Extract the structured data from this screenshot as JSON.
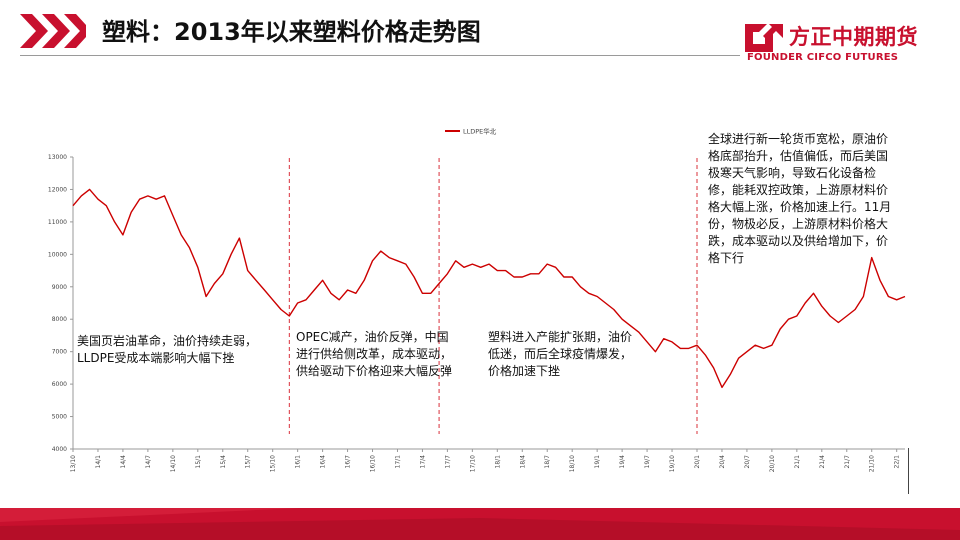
{
  "header": {
    "title": "塑料：2013年以来塑料价格走势图"
  },
  "logo": {
    "name_cn": "方正中期期货",
    "name_en": "FOUNDER CIFCO FUTURES",
    "brand_color": "#c8102e"
  },
  "annotations": [
    {
      "id": "a1",
      "text": "美国页岩油革命，油价持续走弱，LLDPE受成本端影响大幅下挫"
    },
    {
      "id": "a2",
      "text": "OPEC减产，油价反弹，中国进行供给侧改革，成本驱动，供给驱动下价格迎来大幅反弹"
    },
    {
      "id": "a3",
      "text": "塑料进入产能扩张期，油价低迷，而后全球疫情爆发，价格加速下挫"
    },
    {
      "id": "a4",
      "text": "全球进行新一轮货币宽松，原油价格底部抬升，估值偏低，而后美国极寒天气影响，导致石化设备检修，能耗双控政策，上游原材料价格大幅上涨，价格加速上行。11月份，物极必反，上游原材料价格大跌，成本驱动以及供给增加下，价格下行"
    }
  ],
  "chart_data": {
    "type": "line",
    "title": "",
    "xlabel": "",
    "ylabel": "",
    "ylim": [
      4000,
      13000
    ],
    "yticks": [
      "13000",
      "12000",
      "11000",
      "10000",
      "9000",
      "8000",
      "7000",
      "6000",
      "5000",
      "4000"
    ],
    "grid": false,
    "legend_position": "top-center",
    "x_tick_labels": [
      "13/10",
      "14/1",
      "14/4",
      "14/7",
      "14/10",
      "15/1",
      "15/4",
      "15/7",
      "15/10",
      "16/1",
      "16/4",
      "16/7",
      "16/10",
      "17/1",
      "17/4",
      "17/7",
      "17/10",
      "18/1",
      "18/4",
      "18/7",
      "18/10",
      "19/1",
      "19/4",
      "19/7",
      "19/10",
      "20/1",
      "20/4",
      "20/7",
      "20/10",
      "21/1",
      "21/4",
      "21/7",
      "21/10",
      "22/1"
    ],
    "divider_dates": [
      "2015-12",
      "2017-06",
      "2020-01"
    ],
    "series": [
      {
        "name": "LLDPE华北",
        "color": "#cc0000",
        "points": [
          [
            "2013-10",
            11500
          ],
          [
            "2013-11",
            11800
          ],
          [
            "2013-12",
            12000
          ],
          [
            "2014-01",
            11700
          ],
          [
            "2014-02",
            11500
          ],
          [
            "2014-03",
            11000
          ],
          [
            "2014-04",
            10600
          ],
          [
            "2014-05",
            11300
          ],
          [
            "2014-06",
            11700
          ],
          [
            "2014-07",
            11800
          ],
          [
            "2014-08",
            11700
          ],
          [
            "2014-09",
            11800
          ],
          [
            "2014-10",
            11200
          ],
          [
            "2014-11",
            10600
          ],
          [
            "2014-12",
            10200
          ],
          [
            "2015-01",
            9600
          ],
          [
            "2015-02",
            8700
          ],
          [
            "2015-03",
            9100
          ],
          [
            "2015-04",
            9400
          ],
          [
            "2015-05",
            10000
          ],
          [
            "2015-06",
            10500
          ],
          [
            "2015-07",
            9500
          ],
          [
            "2015-08",
            9200
          ],
          [
            "2015-09",
            8900
          ],
          [
            "2015-10",
            8600
          ],
          [
            "2015-11",
            8300
          ],
          [
            "2015-12",
            8100
          ],
          [
            "2016-01",
            8500
          ],
          [
            "2016-02",
            8600
          ],
          [
            "2016-03",
            8900
          ],
          [
            "2016-04",
            9200
          ],
          [
            "2016-05",
            8800
          ],
          [
            "2016-06",
            8600
          ],
          [
            "2016-07",
            8900
          ],
          [
            "2016-08",
            8800
          ],
          [
            "2016-09",
            9200
          ],
          [
            "2016-10",
            9800
          ],
          [
            "2016-11",
            10100
          ],
          [
            "2016-12",
            9900
          ],
          [
            "2017-01",
            9800
          ],
          [
            "2017-02",
            9700
          ],
          [
            "2017-03",
            9300
          ],
          [
            "2017-04",
            8800
          ],
          [
            "2017-05",
            8800
          ],
          [
            "2017-06",
            9100
          ],
          [
            "2017-07",
            9400
          ],
          [
            "2017-08",
            9800
          ],
          [
            "2017-09",
            9600
          ],
          [
            "2017-10",
            9700
          ],
          [
            "2017-11",
            9600
          ],
          [
            "2017-12",
            9700
          ],
          [
            "2018-01",
            9500
          ],
          [
            "2018-02",
            9500
          ],
          [
            "2018-03",
            9300
          ],
          [
            "2018-04",
            9300
          ],
          [
            "2018-05",
            9400
          ],
          [
            "2018-06",
            9400
          ],
          [
            "2018-07",
            9700
          ],
          [
            "2018-08",
            9600
          ],
          [
            "2018-09",
            9300
          ],
          [
            "2018-10",
            9300
          ],
          [
            "2018-11",
            9000
          ],
          [
            "2018-12",
            8800
          ],
          [
            "2019-01",
            8700
          ],
          [
            "2019-02",
            8500
          ],
          [
            "2019-03",
            8300
          ],
          [
            "2019-04",
            8000
          ],
          [
            "2019-05",
            7800
          ],
          [
            "2019-06",
            7600
          ],
          [
            "2019-07",
            7300
          ],
          [
            "2019-08",
            7000
          ],
          [
            "2019-09",
            7400
          ],
          [
            "2019-10",
            7300
          ],
          [
            "2019-11",
            7100
          ],
          [
            "2019-12",
            7100
          ],
          [
            "2020-01",
            7200
          ],
          [
            "2020-02",
            6900
          ],
          [
            "2020-03",
            6500
          ],
          [
            "2020-04",
            5900
          ],
          [
            "2020-05",
            6300
          ],
          [
            "2020-06",
            6800
          ],
          [
            "2020-07",
            7000
          ],
          [
            "2020-08",
            7200
          ],
          [
            "2020-09",
            7100
          ],
          [
            "2020-10",
            7200
          ],
          [
            "2020-11",
            7700
          ],
          [
            "2020-12",
            8000
          ],
          [
            "2021-01",
            8100
          ],
          [
            "2021-02",
            8500
          ],
          [
            "2021-03",
            8800
          ],
          [
            "2021-04",
            8400
          ],
          [
            "2021-05",
            8100
          ],
          [
            "2021-06",
            7900
          ],
          [
            "2021-07",
            8100
          ],
          [
            "2021-08",
            8300
          ],
          [
            "2021-09",
            8700
          ],
          [
            "2021-10",
            9900
          ],
          [
            "2021-11",
            9200
          ],
          [
            "2021-12",
            8700
          ],
          [
            "2022-01",
            8600
          ],
          [
            "2022-02",
            8700
          ]
        ]
      }
    ]
  }
}
